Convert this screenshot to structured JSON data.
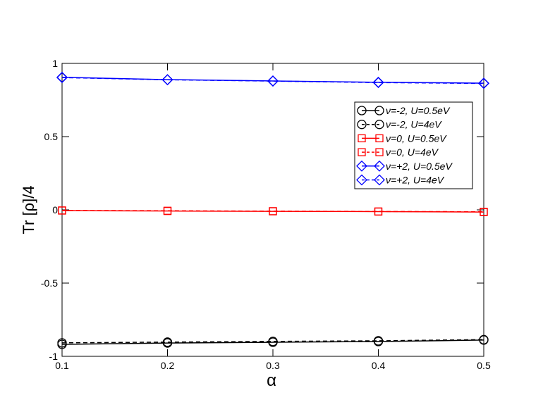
{
  "chart_data": {
    "type": "line",
    "x_label": "α",
    "y_label": "Tr [ρ]/4",
    "x": [
      0.1,
      0.2,
      0.3,
      0.4,
      0.5
    ],
    "xlim": [
      0.1,
      0.5
    ],
    "xticks": [
      0.1,
      0.2,
      0.3,
      0.4,
      0.5
    ],
    "ylim": [
      -1,
      1
    ],
    "yticks": [
      -1,
      -0.5,
      0,
      0.5,
      1
    ],
    "legend": "upper right",
    "series": [
      {
        "name": "ν=-2, U=0.5eV",
        "color": "#000000",
        "marker": "circle",
        "line_style": "solid",
        "values": [
          -0.918,
          -0.909,
          -0.904,
          -0.899,
          -0.889
        ]
      },
      {
        "name": "ν=-2, U=4eV",
        "color": "#000000",
        "marker": "circle",
        "line_style": "dashed",
        "values": [
          -0.908,
          -0.903,
          -0.898,
          -0.894,
          -0.886
        ]
      },
      {
        "name": "ν=0, U=0.5eV",
        "color": "#ff0000",
        "marker": "square",
        "line_style": "solid",
        "values": [
          -0.005,
          -0.008,
          -0.01,
          -0.012,
          -0.015
        ]
      },
      {
        "name": "ν=0, U=4eV",
        "color": "#ff0000",
        "marker": "square",
        "line_style": "dashed",
        "values": [
          -0.004,
          -0.006,
          -0.009,
          -0.011,
          -0.013
        ]
      },
      {
        "name": "ν=+2, U=0.5eV",
        "color": "#0000ff",
        "marker": "diamond",
        "line_style": "solid",
        "values": [
          0.905,
          0.889,
          0.88,
          0.871,
          0.865
        ]
      },
      {
        "name": "ν=+2, U=4eV",
        "color": "#0000ff",
        "marker": "diamond",
        "line_style": "dashed",
        "values": [
          0.903,
          0.888,
          0.879,
          0.869,
          0.863
        ]
      }
    ]
  }
}
